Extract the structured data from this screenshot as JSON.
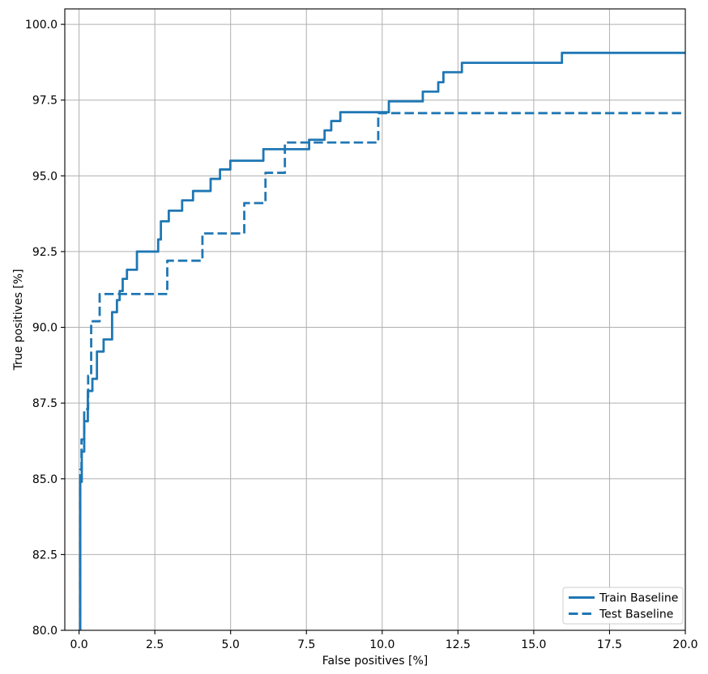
{
  "chart_data": {
    "type": "line",
    "subtype": "step",
    "title": "",
    "xlabel": "False positives [%]",
    "ylabel": "True positives [%]",
    "xlim": [
      -0.47,
      20
    ],
    "ylim": [
      80,
      100.51
    ],
    "xticks": [
      0.0,
      2.5,
      5.0,
      7.5,
      10.0,
      12.5,
      15.0,
      17.5,
      20.0
    ],
    "yticks": [
      80.0,
      82.5,
      85.0,
      87.5,
      90.0,
      92.5,
      95.0,
      97.5,
      100.0
    ],
    "grid": true,
    "grid_color": "#b0b0b0",
    "line_color": "#1f77b4",
    "legend": {
      "position": "lower right",
      "entries": [
        "Train Baseline",
        "Test Baseline"
      ]
    },
    "series": [
      {
        "name": "Train Baseline",
        "style": "solid",
        "color": "#1f77b4",
        "points": [
          [
            0.04,
            80.0
          ],
          [
            0.04,
            84.9
          ],
          [
            0.09,
            84.9
          ],
          [
            0.09,
            85.9
          ],
          [
            0.17,
            85.9
          ],
          [
            0.17,
            86.9
          ],
          [
            0.29,
            86.9
          ],
          [
            0.29,
            87.9
          ],
          [
            0.44,
            87.9
          ],
          [
            0.44,
            88.3
          ],
          [
            0.59,
            88.3
          ],
          [
            0.59,
            89.2
          ],
          [
            0.81,
            89.2
          ],
          [
            0.81,
            89.6
          ],
          [
            1.09,
            89.6
          ],
          [
            1.09,
            90.5
          ],
          [
            1.25,
            90.5
          ],
          [
            1.25,
            90.9
          ],
          [
            1.34,
            90.9
          ],
          [
            1.34,
            91.2
          ],
          [
            1.44,
            91.2
          ],
          [
            1.44,
            91.6
          ],
          [
            1.58,
            91.6
          ],
          [
            1.58,
            91.9
          ],
          [
            1.91,
            91.9
          ],
          [
            1.91,
            92.5
          ],
          [
            2.61,
            92.5
          ],
          [
            2.61,
            92.9
          ],
          [
            2.7,
            92.9
          ],
          [
            2.7,
            93.5
          ],
          [
            2.96,
            93.5
          ],
          [
            2.96,
            93.85
          ],
          [
            3.4,
            93.85
          ],
          [
            3.4,
            94.19
          ],
          [
            3.76,
            94.19
          ],
          [
            3.76,
            94.5
          ],
          [
            4.34,
            94.5
          ],
          [
            4.34,
            94.9
          ],
          [
            4.65,
            94.9
          ],
          [
            4.65,
            95.21
          ],
          [
            4.99,
            95.21
          ],
          [
            4.99,
            95.5
          ],
          [
            6.08,
            95.5
          ],
          [
            6.08,
            95.88
          ],
          [
            7.59,
            95.88
          ],
          [
            7.59,
            96.19
          ],
          [
            8.1,
            96.19
          ],
          [
            8.1,
            96.5
          ],
          [
            8.32,
            96.5
          ],
          [
            8.32,
            96.81
          ],
          [
            8.62,
            96.81
          ],
          [
            8.62,
            97.1
          ],
          [
            10.22,
            97.1
          ],
          [
            10.22,
            97.46
          ],
          [
            11.34,
            97.46
          ],
          [
            11.34,
            97.78
          ],
          [
            11.85,
            97.78
          ],
          [
            11.85,
            98.09
          ],
          [
            12.02,
            98.09
          ],
          [
            12.02,
            98.42
          ],
          [
            12.63,
            98.42
          ],
          [
            12.63,
            98.73
          ],
          [
            15.93,
            98.73
          ],
          [
            15.93,
            99.06
          ],
          [
            20.0,
            99.06
          ]
        ]
      },
      {
        "name": "Test Baseline",
        "style": "dashed",
        "color": "#1f77b4",
        "points": [
          [
            0.04,
            80.0
          ],
          [
            0.04,
            85.3
          ],
          [
            0.08,
            85.3
          ],
          [
            0.08,
            86.3
          ],
          [
            0.17,
            86.3
          ],
          [
            0.17,
            87.3
          ],
          [
            0.3,
            87.3
          ],
          [
            0.3,
            88.4
          ],
          [
            0.4,
            88.4
          ],
          [
            0.4,
            90.2
          ],
          [
            0.68,
            90.2
          ],
          [
            0.68,
            91.1
          ],
          [
            2.91,
            91.1
          ],
          [
            2.91,
            92.2
          ],
          [
            4.07,
            92.2
          ],
          [
            4.07,
            93.1
          ],
          [
            5.45,
            93.1
          ],
          [
            5.45,
            94.1
          ],
          [
            6.15,
            94.1
          ],
          [
            6.15,
            95.1
          ],
          [
            6.79,
            95.1
          ],
          [
            6.79,
            96.1
          ],
          [
            9.87,
            96.1
          ],
          [
            9.87,
            97.07
          ],
          [
            20.0,
            97.07
          ]
        ]
      }
    ]
  }
}
